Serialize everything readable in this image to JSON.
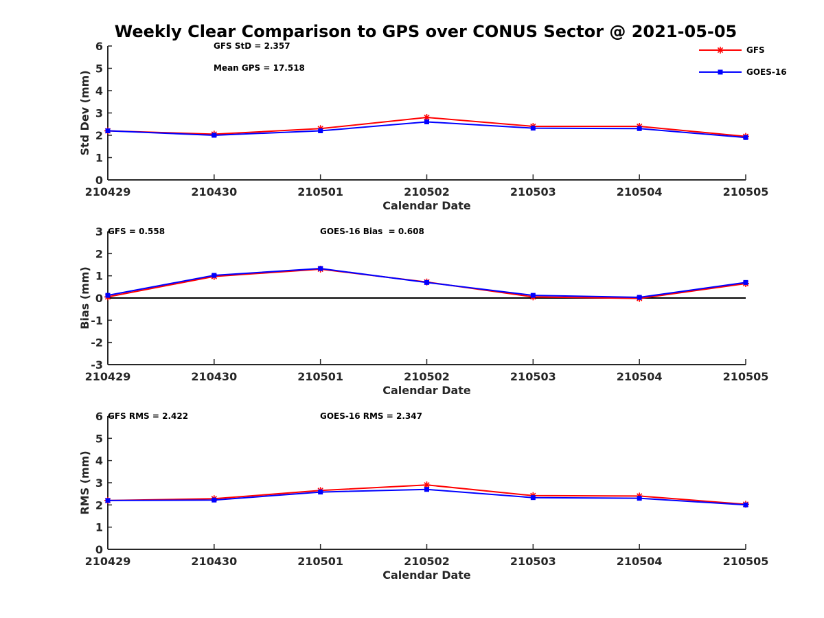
{
  "title": "Weekly Clear Comparison to GPS over CONUS Sector @ 2021-05-05",
  "colors": {
    "gfs": "#ff0000",
    "goes": "#0000ff",
    "axis": "#262626"
  },
  "legend": [
    {
      "name": "GFS",
      "color": "#ff0000",
      "marker": "asterisk"
    },
    {
      "name": "GOES-16",
      "color": "#0000ff",
      "marker": "square"
    }
  ],
  "chart_data": [
    {
      "type": "line",
      "categories": [
        "210429",
        "210430",
        "210501",
        "210502",
        "210503",
        "210504",
        "210505"
      ],
      "xlabel": "Calendar Date",
      "ylabel": "Std Dev (mm)",
      "ylim": [
        0,
        6
      ],
      "yticks": [
        "0",
        "1",
        "2",
        "3",
        "4",
        "5",
        "6"
      ],
      "zero_line": false,
      "annotations": [
        "GFS StD = 2.357",
        "Mean GPS = 17.518"
      ],
      "series": [
        {
          "name": "GFS",
          "values": [
            2.2,
            2.05,
            2.3,
            2.8,
            2.4,
            2.4,
            1.95
          ]
        },
        {
          "name": "GOES-16",
          "values": [
            2.2,
            2.0,
            2.2,
            2.6,
            2.32,
            2.3,
            1.9
          ]
        }
      ]
    },
    {
      "type": "line",
      "categories": [
        "210429",
        "210430",
        "210501",
        "210502",
        "210503",
        "210504",
        "210505"
      ],
      "xlabel": "Calendar Date",
      "ylabel": "Bias (mm)",
      "ylim": [
        -3,
        3
      ],
      "yticks": [
        "-3",
        "-2",
        "-1",
        "0",
        "1",
        "2",
        "3"
      ],
      "zero_line": true,
      "annotations": [
        "GFS = 0.558",
        "GOES-16 Bias  = 0.608"
      ],
      "series": [
        {
          "name": "GFS",
          "values": [
            0.05,
            0.97,
            1.3,
            0.72,
            0.05,
            -0.02,
            0.65
          ]
        },
        {
          "name": "GOES-16",
          "values": [
            0.12,
            1.02,
            1.33,
            0.7,
            0.12,
            0.03,
            0.7
          ]
        }
      ]
    },
    {
      "type": "line",
      "categories": [
        "210429",
        "210430",
        "210501",
        "210502",
        "210503",
        "210504",
        "210505"
      ],
      "xlabel": "Calendar Date",
      "ylabel": "RMS (mm)",
      "ylim": [
        0,
        6
      ],
      "yticks": [
        "0",
        "1",
        "2",
        "3",
        "4",
        "5",
        "6"
      ],
      "zero_line": false,
      "annotations": [
        "GFS RMS = 2.422",
        "GOES-16 RMS = 2.347"
      ],
      "series": [
        {
          "name": "GFS",
          "values": [
            2.2,
            2.28,
            2.65,
            2.9,
            2.42,
            2.4,
            2.03
          ]
        },
        {
          "name": "GOES-16",
          "values": [
            2.2,
            2.22,
            2.58,
            2.7,
            2.33,
            2.3,
            2.0
          ]
        }
      ]
    }
  ]
}
